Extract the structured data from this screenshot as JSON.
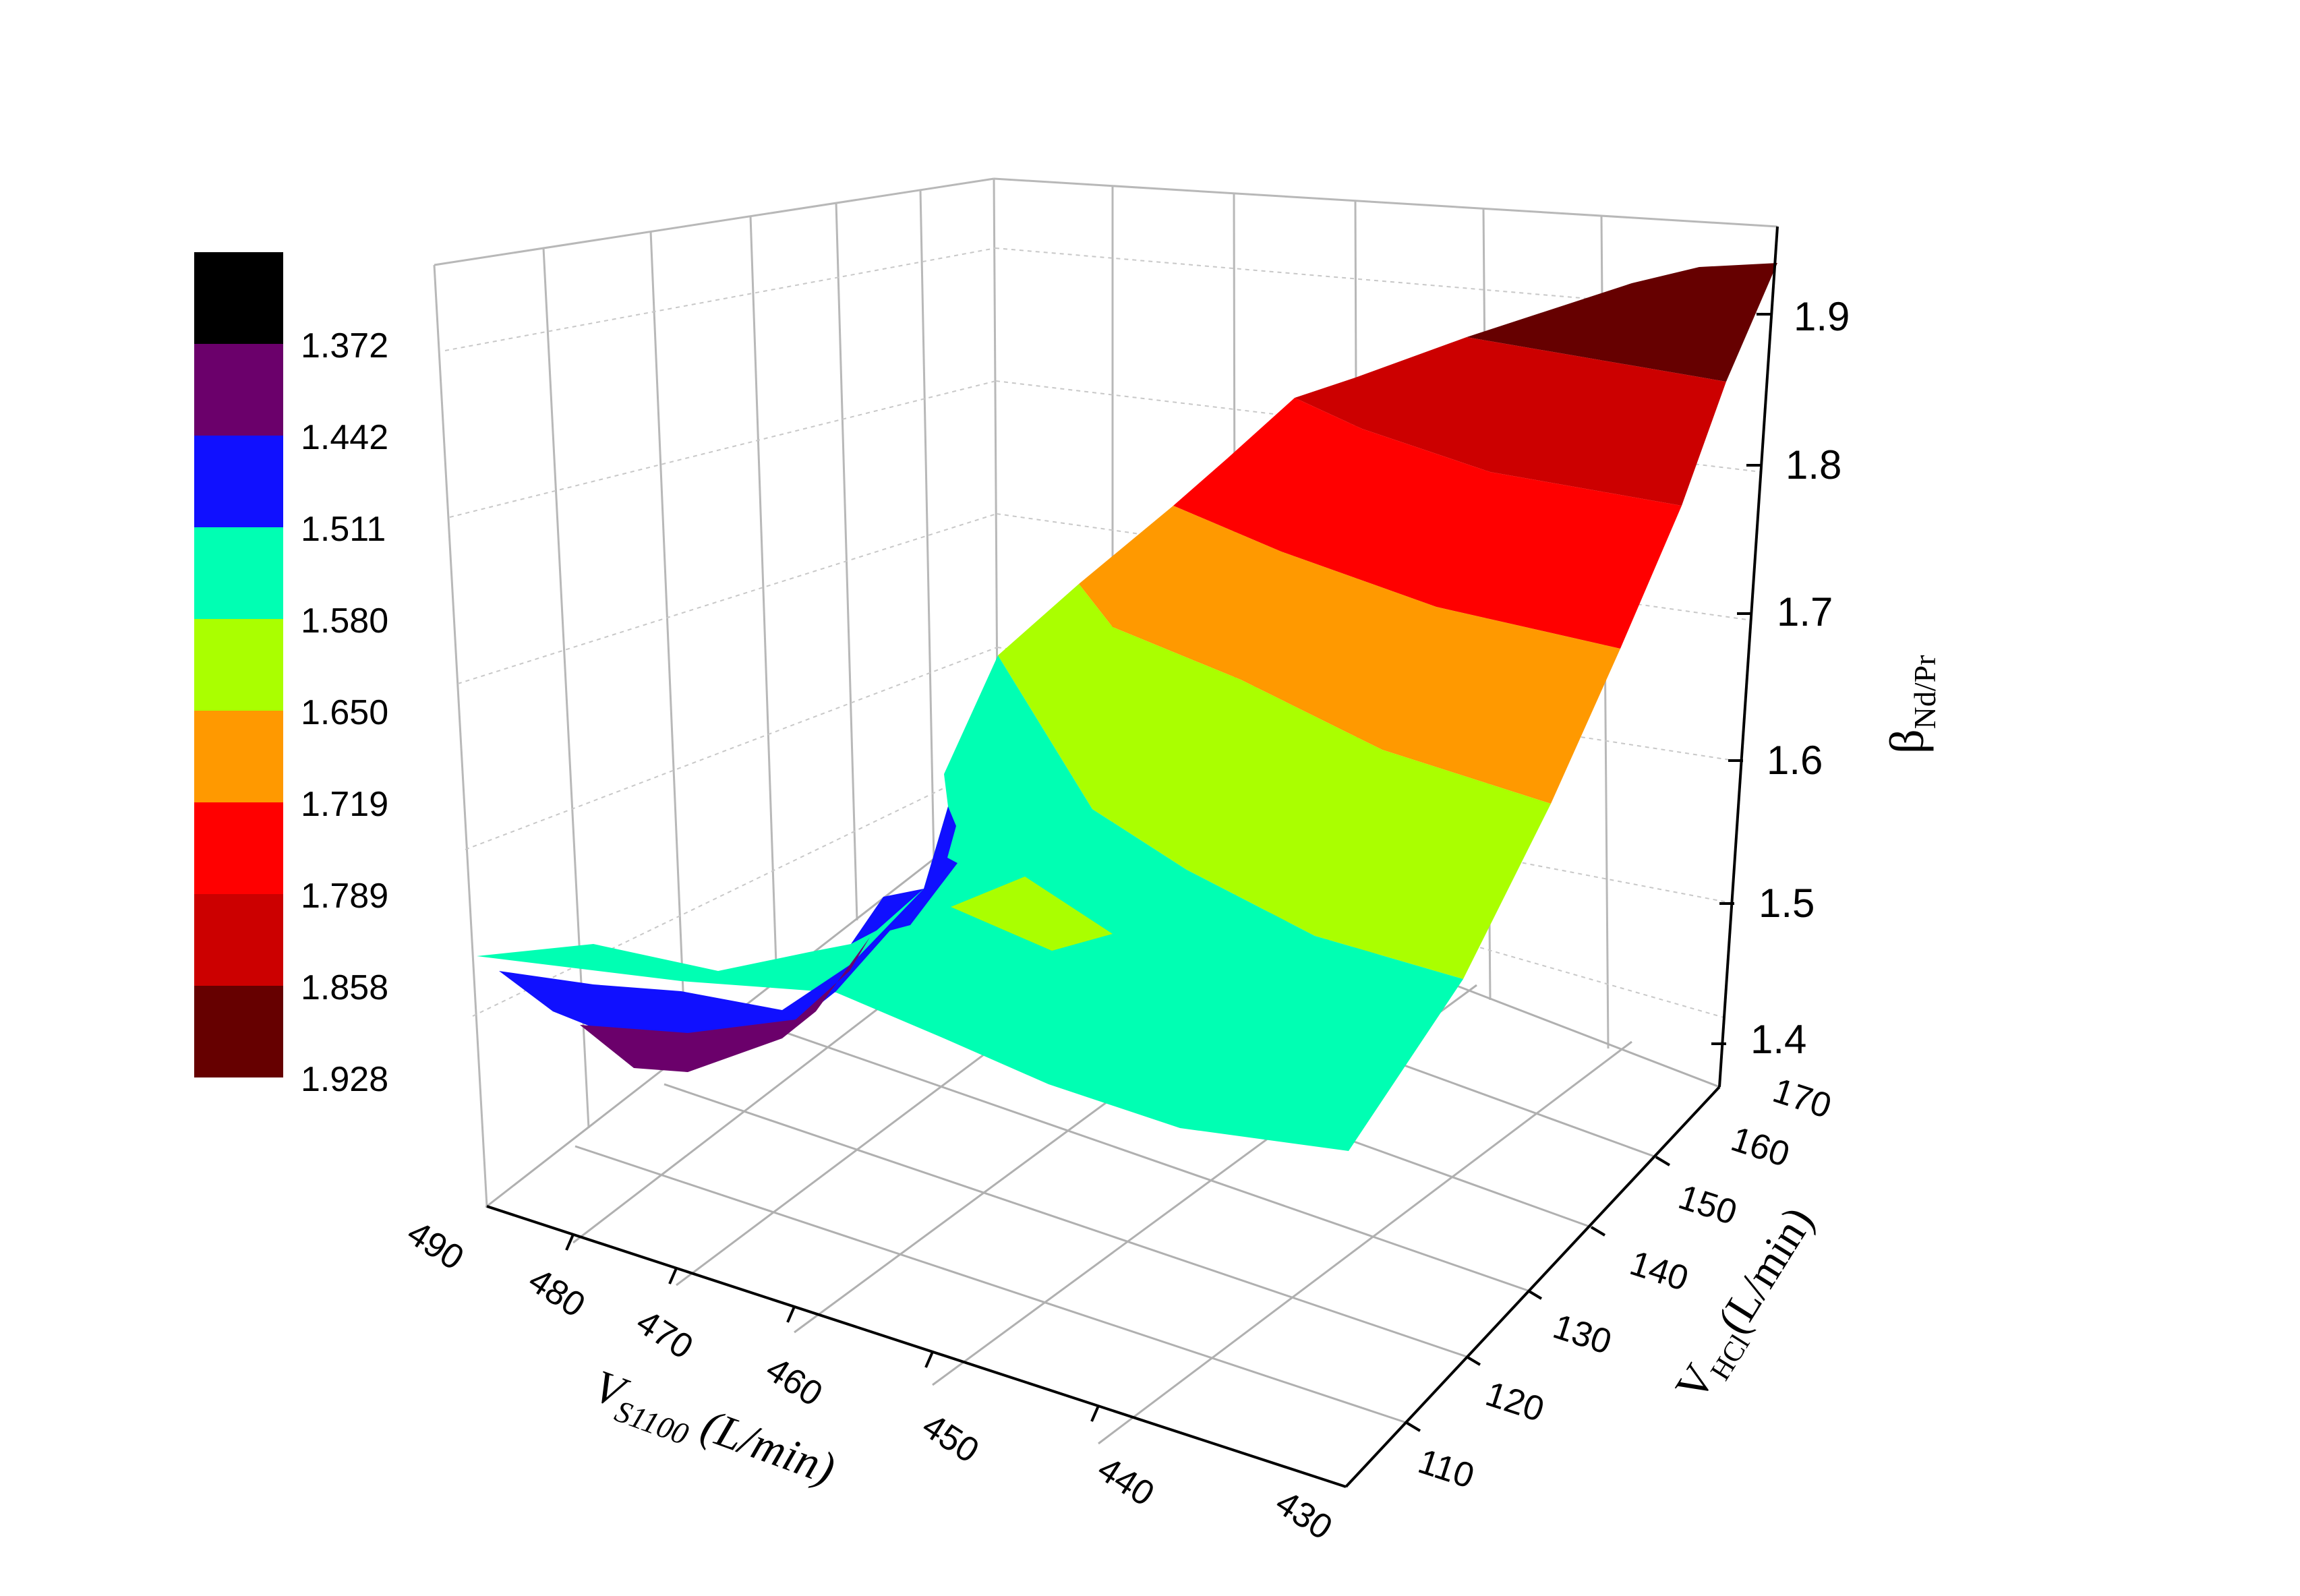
{
  "chart_data": {
    "type": "surface3d",
    "title": "",
    "x_axis": {
      "label_main": "V",
      "label_sub": "S1100",
      "label_unit": " (L/min)",
      "ticks": [
        "490",
        "480",
        "470",
        "460",
        "450",
        "440",
        "430"
      ],
      "range": [
        490,
        430
      ]
    },
    "y_axis": {
      "label_main": "V",
      "label_sub": "HCl",
      "label_unit": "(L/min)",
      "ticks": [
        "110",
        "120",
        "130",
        "140",
        "150",
        "160",
        "170"
      ],
      "range": [
        110,
        170
      ]
    },
    "z_axis": {
      "label_main": "β",
      "label_sub": "Nd/Pr",
      "ticks": [
        "1.4",
        "1.5",
        "1.6",
        "1.7",
        "1.8",
        "1.9"
      ],
      "range": [
        1.4,
        1.9
      ]
    },
    "colorbar": {
      "levels": [
        {
          "label": "1.372",
          "color": "#000000"
        },
        {
          "label": "1.442",
          "color": "#6b006b"
        },
        {
          "label": "1.511",
          "color": "#1010ff"
        },
        {
          "label": "1.580",
          "color": "#00ffb3"
        },
        {
          "label": "1.650",
          "color": "#aaff00"
        },
        {
          "label": "1.719",
          "color": "#ff9900"
        },
        {
          "label": "1.789",
          "color": "#ff0000"
        },
        {
          "label": "1.858",
          "color": "#cc0000"
        },
        {
          "label": "1.928",
          "color": "#660000"
        }
      ]
    },
    "grid": true,
    "surface_bands": [
      {
        "level": "1.928",
        "color": "#660000"
      },
      {
        "level": "1.858",
        "color": "#cc0000"
      },
      {
        "level": "1.789",
        "color": "#ff0000"
      },
      {
        "level": "1.719",
        "color": "#ff9900"
      },
      {
        "level": "1.650",
        "color": "#aaff00"
      },
      {
        "level": "1.580",
        "color": "#00ffb3"
      },
      {
        "level": "1.511",
        "color": "#1010ff"
      },
      {
        "level": "1.442",
        "color": "#6b006b"
      }
    ]
  }
}
